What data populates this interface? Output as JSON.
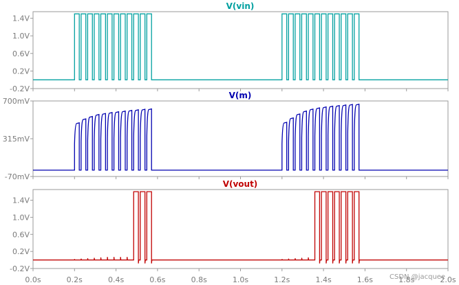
{
  "watermark": "CSDN @jacquee",
  "colors": {
    "vin": "#00a0a0",
    "m": "#0000b0",
    "vout": "#c00000",
    "frame": "#9a9a9a",
    "ticks": "#7a7a7a"
  },
  "chart_data": [
    {
      "type": "line",
      "title": "V(vin)",
      "ylim": [
        -0.2,
        1.55
      ],
      "yticks": [
        -0.2,
        0.2,
        0.6,
        1.0,
        1.4
      ],
      "ytick_labels": [
        "-0.2V",
        "0.2V",
        "0.6V",
        "1.0V",
        "1.4V"
      ],
      "xlim": [
        0,
        2.0
      ],
      "grid": false,
      "color": "#00a0a0",
      "baseline": 0.0,
      "high": 1.5,
      "bursts": [
        {
          "start": 0.2,
          "stop": 0.58,
          "pulses": 12
        },
        {
          "start": 1.2,
          "stop": 1.58,
          "pulses": 12
        }
      ]
    },
    {
      "type": "line",
      "title": "V(m)",
      "ylim": [
        -70,
        700
      ],
      "yticks": [
        -70,
        315,
        700
      ],
      "ytick_labels": [
        "-70mV",
        "315mV",
        "700mV"
      ],
      "xlim": [
        0,
        2.0
      ],
      "grid": false,
      "color": "#0000b0",
      "baseline_mV": -5,
      "bursts": [
        {
          "start": 0.2,
          "stop": 0.58,
          "peaks_mV": [
            470,
            510,
            535,
            555,
            565,
            575,
            583,
            590,
            597,
            603,
            608,
            612
          ]
        },
        {
          "start": 1.2,
          "stop": 1.58,
          "peaks_mV": [
            475,
            520,
            560,
            590,
            610,
            622,
            632,
            640,
            646,
            652,
            657,
            660
          ]
        }
      ]
    },
    {
      "type": "line",
      "title": "V(vout)",
      "ylim": [
        -0.2,
        1.65
      ],
      "yticks": [
        -0.2,
        0.2,
        0.6,
        1.0,
        1.4
      ],
      "ytick_labels": [
        "-0.2V",
        "0.2V",
        "0.6V",
        "1.0V",
        "1.4V"
      ],
      "xlim": [
        0,
        2.0
      ],
      "xticks": [
        0,
        0.2,
        0.4,
        0.6,
        0.8,
        1.0,
        1.2,
        1.4,
        1.6,
        1.8,
        2.0
      ],
      "xtick_labels": [
        "0.0s",
        "0.2s",
        "0.4s",
        "0.6s",
        "0.8s",
        "1.0s",
        "1.2s",
        "1.4s",
        "1.6s",
        "1.8s",
        "2.0s"
      ],
      "xlabel": "",
      "grid": false,
      "color": "#c00000",
      "baseline": 0.0,
      "high": 1.6,
      "full_pulses": [
        {
          "start": 0.455,
          "stop": 0.58
        },
        {
          "start": 1.33,
          "stop": 1.58
        }
      ],
      "glitches_V": [
        0.02,
        0.03,
        0.04,
        0.05,
        0.06,
        0.07
      ]
    }
  ]
}
